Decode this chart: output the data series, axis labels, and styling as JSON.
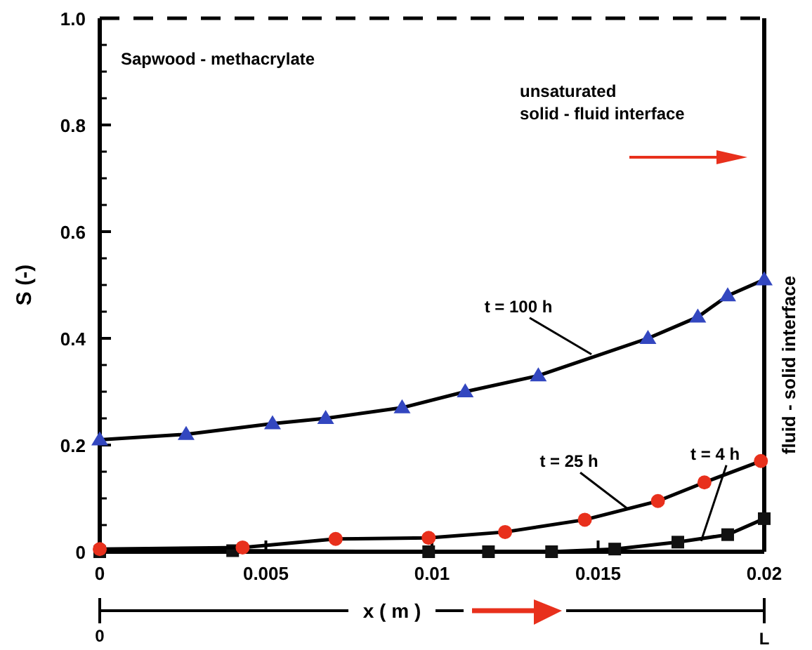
{
  "chart_data": {
    "type": "line",
    "ylabel": "S (-)",
    "xlabel": "x ( m )",
    "xlim": [
      0,
      0.02
    ],
    "ylim": [
      0,
      1
    ],
    "xticks": [
      0,
      0.005,
      0.01,
      0.015,
      0.02
    ],
    "yticks": [
      0,
      0.2,
      0.4,
      0.6,
      0.8,
      {
        "value": 1,
        "label": "1.0"
      }
    ],
    "grid": false,
    "line_style": "solid",
    "series": [
      {
        "color": "#3347c0",
        "marker": "triangle",
        "x": [
          0,
          0.0026,
          0.0052,
          0.0068,
          0.0091,
          0.011,
          0.0132,
          0.0165,
          0.018,
          0.0189,
          0.02
        ],
        "values": [
          0.21,
          0.22,
          0.24,
          0.25,
          0.27,
          0.3,
          0.33,
          0.4,
          0.44,
          0.48,
          0.51
        ]
      },
      {
        "color": "#e8301c",
        "marker": "circle",
        "x": [
          0,
          0.0043,
          0.0071,
          0.0099,
          0.0122,
          0.0146,
          0.0168,
          0.0182,
          0.0199
        ],
        "values": [
          0.005,
          0.008,
          0.024,
          0.026,
          0.037,
          0.06,
          0.095,
          0.13,
          0.17
        ]
      },
      {
        "color": "#111111",
        "marker": "square",
        "x": [
          0,
          0.004,
          0.0099,
          0.0117,
          0.0136,
          0.0155,
          0.0174,
          0.0189,
          0.02
        ],
        "values": [
          0,
          0.002,
          0,
          0,
          0,
          0.005,
          0.018,
          0.032,
          0.062
        ]
      }
    ],
    "annotations": [
      "Sapwood - methacrylate",
      "unsaturated\nsolid - fluid interface",
      "fluid - solid interface",
      {
        "text": "t = 100 h",
        "x": 0.0148,
        "y": 0.37
      },
      {
        "text": "t = 25 h",
        "x": 0.0159,
        "y": 0.08
      },
      {
        "text": "t = 4 h",
        "x": 0.0181,
        "y": 0.02
      },
      "0",
      "L"
    ]
  }
}
